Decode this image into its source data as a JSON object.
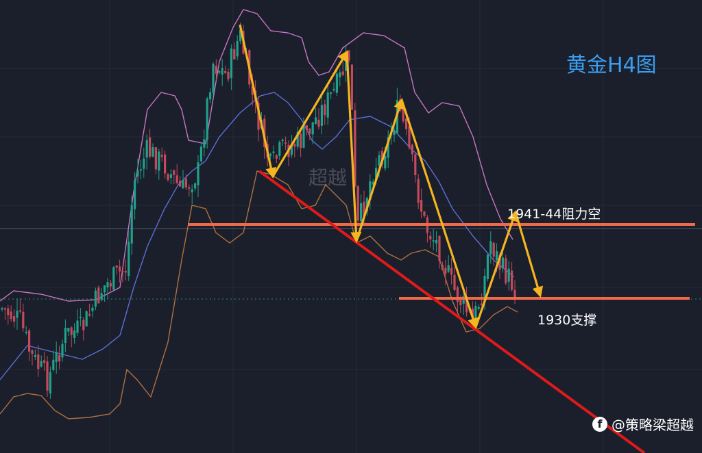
{
  "chart_data": {
    "type": "candlestick",
    "title": "黄金H4图",
    "levels": [
      {
        "label": "1941-44阻力空",
        "kind": "resistance"
      },
      {
        "label": "1930支撑",
        "kind": "support"
      }
    ],
    "trendline": {
      "kind": "descending",
      "color": "#e01a1a"
    },
    "indicator": "Bollinger Bands",
    "grid": true,
    "colors": {
      "up": "#1fa18a",
      "down": "#c44a5c",
      "upper_band": "#c875c4",
      "middle_band": "#5b6fd6",
      "lower_band": "#b07040",
      "level_line": "#ef6a4a",
      "arrows": "#f5b51f"
    }
  },
  "watermark": "超越",
  "brand": {
    "logo": "f",
    "text": "@策略梁超越"
  }
}
